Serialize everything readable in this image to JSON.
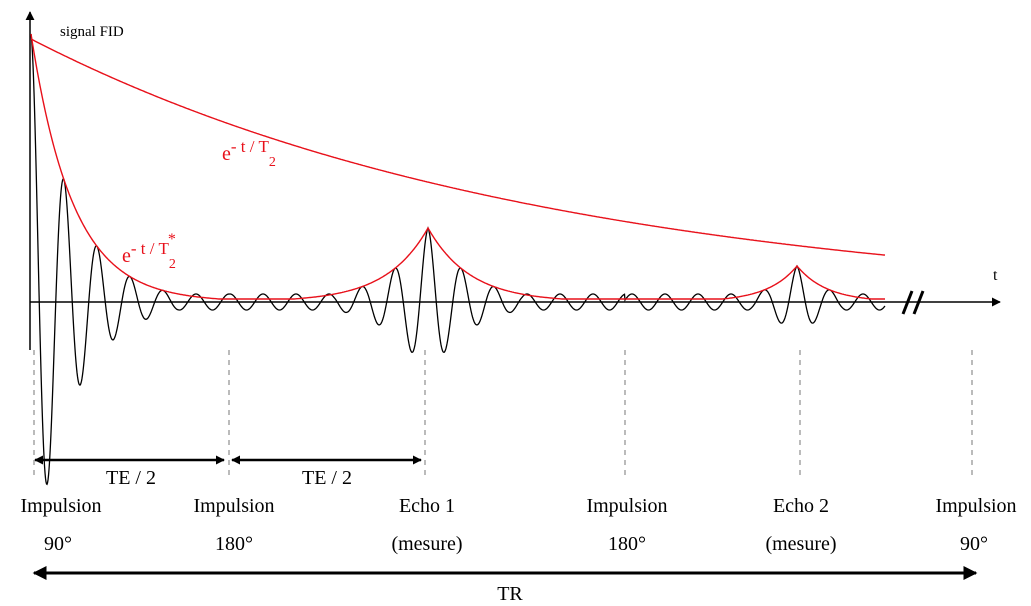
{
  "y_axis_label": "signal FID",
  "x_axis_label": "t",
  "axis_break_symbol": "//",
  "envelopes": {
    "t2": {
      "base": "e",
      "exponent": "- t / T",
      "subscript": "2",
      "superscript": ""
    },
    "t2_star": {
      "base": "e",
      "exponent": "- t / T",
      "subscript": "2",
      "superscript": "*"
    }
  },
  "intervals": [
    {
      "label": "TE / 2"
    },
    {
      "label": "TE / 2"
    }
  ],
  "events": [
    {
      "line1": "Impulsion",
      "line2": "90°"
    },
    {
      "line1": "Impulsion",
      "line2": "180°"
    },
    {
      "line1": "Echo 1",
      "line2": "(mesure)"
    },
    {
      "line1": "Impulsion",
      "line2": "180°"
    },
    {
      "line1": "Echo 2",
      "line2": "(mesure)"
    },
    {
      "line1": "Impulsion",
      "line2": "90°"
    }
  ],
  "tr_label": "TR",
  "colors": {
    "envelope": "#e8101a",
    "signal": "#000000",
    "guide": "#bbbbbb",
    "axis": "#000000"
  }
}
